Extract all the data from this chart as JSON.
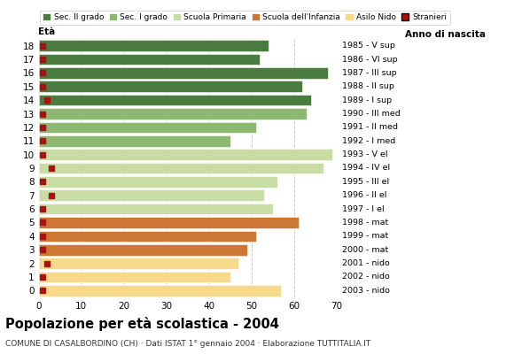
{
  "ages": [
    18,
    17,
    16,
    15,
    14,
    13,
    12,
    11,
    10,
    9,
    8,
    7,
    6,
    5,
    4,
    3,
    2,
    1,
    0
  ],
  "bar_values": [
    54,
    52,
    68,
    62,
    64,
    63,
    51,
    45,
    69,
    67,
    56,
    53,
    55,
    61,
    51,
    49,
    47,
    45,
    57
  ],
  "stranieri_x": [
    1,
    1,
    1,
    1,
    2,
    1,
    1,
    1,
    1,
    3,
    1,
    3,
    1,
    1,
    1,
    1,
    2,
    1,
    1
  ],
  "bar_colors": [
    "#4a7c3f",
    "#4a7c3f",
    "#4a7c3f",
    "#4a7c3f",
    "#4a7c3f",
    "#8db870",
    "#8db870",
    "#8db870",
    "#c8dca4",
    "#c8dca4",
    "#c8dca4",
    "#c8dca4",
    "#c8dca4",
    "#cc7733",
    "#cc7733",
    "#cc7733",
    "#f7d98c",
    "#f7d98c",
    "#f7d98c"
  ],
  "anno_nascita": [
    "1985 - V sup",
    "1986 - VI sup",
    "1987 - III sup",
    "1988 - II sup",
    "1989 - I sup",
    "1990 - III med",
    "1991 - II med",
    "1992 - I med",
    "1993 - V el",
    "1994 - IV el",
    "1995 - III el",
    "1996 - II el",
    "1997 - I el",
    "1998 - mat",
    "1999 - mat",
    "2000 - mat",
    "2001 - nido",
    "2002 - nido",
    "2003 - nido"
  ],
  "legend_labels": [
    "Sec. II grado",
    "Sec. I grado",
    "Scuola Primaria",
    "Scuola dell'Infanzia",
    "Asilo Nido",
    "Stranieri"
  ],
  "legend_colors": [
    "#4a7c3f",
    "#8db870",
    "#c8dca4",
    "#cc7733",
    "#f7d98c",
    "#aa1111"
  ],
  "title": "Popolazione per età scolastica - 2004",
  "subtitle": "COMUNE DI CASALBORDINO (CH) · Dati ISTAT 1° gennaio 2004 · Elaborazione TUTTITALIA.IT",
  "label_eta": "Età",
  "label_anno": "Anno di nascita",
  "stranieri_color": "#aa1111",
  "xlim": [
    0,
    70
  ],
  "xticks": [
    0,
    10,
    20,
    30,
    40,
    50,
    60,
    70
  ],
  "bg_color": "#ffffff",
  "grid_color": "#cccccc",
  "bar_height": 0.82
}
